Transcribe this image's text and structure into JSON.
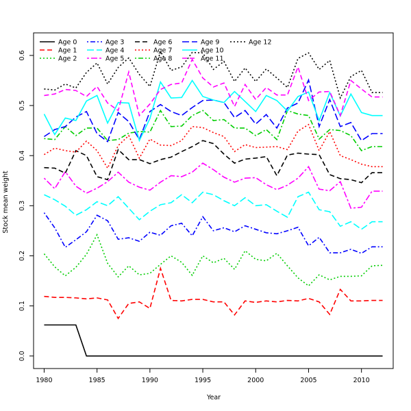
{
  "chart_data": {
    "type": "line",
    "title": "",
    "xlabel": "Year",
    "ylabel": "Stock mean weight",
    "xlim": [
      1979,
      2013
    ],
    "ylim": [
      -0.025,
      0.645
    ],
    "x_ticks": [
      1980,
      1985,
      1990,
      1995,
      2000,
      2005,
      2010
    ],
    "y_ticks": [
      0.0,
      0.1,
      0.2,
      0.3,
      0.4,
      0.5,
      0.6
    ],
    "y_tick_labels": [
      "0.0",
      "0.1",
      "0.2",
      "0.3",
      "0.4",
      "0.5",
      "0.6"
    ],
    "legend_position": "top-left",
    "x": [
      1980,
      1981,
      1982,
      1983,
      1984,
      1985,
      1986,
      1987,
      1988,
      1989,
      1990,
      1991,
      1992,
      1993,
      1994,
      1995,
      1996,
      1997,
      1998,
      1999,
      2000,
      2001,
      2002,
      2003,
      2004,
      2005,
      2006,
      2007,
      2008,
      2009,
      2010,
      2011,
      2012
    ],
    "series": [
      {
        "name": "Age 0",
        "color": "#000000",
        "dash": "solid",
        "values": [
          0.062,
          0.062,
          0.062,
          0.062,
          0.0,
          0.0,
          0.0,
          0.0,
          0.0,
          0.0,
          0.0,
          0.0,
          0.0,
          0.0,
          0.0,
          0.0,
          0.0,
          0.0,
          0.0,
          0.0,
          0.0,
          0.0,
          0.0,
          0.0,
          0.0,
          0.0,
          0.0,
          0.0,
          0.0,
          0.0,
          0.0,
          0.0,
          0.0
        ]
      },
      {
        "name": "Age 1",
        "color": "#ff0000",
        "dash": "dashed",
        "values": [
          0.119,
          0.117,
          0.117,
          0.116,
          0.114,
          0.116,
          0.112,
          0.075,
          0.105,
          0.108,
          0.095,
          0.175,
          0.111,
          0.11,
          0.113,
          0.113,
          0.108,
          0.108,
          0.082,
          0.11,
          0.107,
          0.11,
          0.108,
          0.111,
          0.11,
          0.115,
          0.108,
          0.083,
          0.133,
          0.11,
          0.11,
          0.111,
          0.111
        ]
      },
      {
        "name": "Age 2",
        "color": "#00cd00",
        "dash": "dotted",
        "values": [
          0.204,
          0.178,
          0.16,
          0.177,
          0.203,
          0.242,
          0.185,
          0.158,
          0.18,
          0.162,
          0.165,
          0.183,
          0.2,
          0.187,
          0.161,
          0.2,
          0.186,
          0.195,
          0.173,
          0.21,
          0.193,
          0.19,
          0.205,
          0.18,
          0.156,
          0.14,
          0.162,
          0.152,
          0.159,
          0.159,
          0.16,
          0.18,
          0.181
        ]
      },
      {
        "name": "Age 3",
        "color": "#0000ff",
        "dash": "dashdot",
        "values": [
          0.286,
          0.256,
          0.217,
          0.232,
          0.248,
          0.281,
          0.27,
          0.233,
          0.236,
          0.229,
          0.247,
          0.241,
          0.26,
          0.265,
          0.24,
          0.278,
          0.25,
          0.256,
          0.248,
          0.26,
          0.253,
          0.246,
          0.244,
          0.25,
          0.257,
          0.22,
          0.237,
          0.206,
          0.206,
          0.213,
          0.205,
          0.218,
          0.218
        ]
      },
      {
        "name": "Age 4",
        "color": "#00ffff",
        "dash": "longdash",
        "values": [
          0.322,
          0.312,
          0.299,
          0.281,
          0.292,
          0.308,
          0.3,
          0.318,
          0.295,
          0.272,
          0.289,
          0.302,
          0.306,
          0.322,
          0.306,
          0.327,
          0.322,
          0.31,
          0.3,
          0.316,
          0.3,
          0.302,
          0.289,
          0.277,
          0.318,
          0.327,
          0.292,
          0.288,
          0.259,
          0.268,
          0.253,
          0.268,
          0.268
        ]
      },
      {
        "name": "Age 5",
        "color": "#ff00ff",
        "dash": "twodash",
        "values": [
          0.355,
          0.334,
          0.368,
          0.339,
          0.325,
          0.335,
          0.348,
          0.367,
          0.347,
          0.337,
          0.331,
          0.347,
          0.36,
          0.358,
          0.367,
          0.385,
          0.372,
          0.357,
          0.347,
          0.355,
          0.356,
          0.342,
          0.332,
          0.341,
          0.355,
          0.378,
          0.333,
          0.33,
          0.348,
          0.295,
          0.297,
          0.329,
          0.329
        ]
      },
      {
        "name": "Age 6",
        "color": "#000000",
        "dash": "dashed",
        "values": [
          0.376,
          0.375,
          0.365,
          0.41,
          0.4,
          0.358,
          0.352,
          0.412,
          0.392,
          0.392,
          0.384,
          0.392,
          0.397,
          0.408,
          0.418,
          0.43,
          0.424,
          0.403,
          0.385,
          0.393,
          0.395,
          0.398,
          0.36,
          0.401,
          0.405,
          0.403,
          0.402,
          0.362,
          0.354,
          0.352,
          0.346,
          0.366,
          0.366
        ]
      },
      {
        "name": "Age 7",
        "color": "#ff0000",
        "dash": "dotted",
        "values": [
          0.402,
          0.415,
          0.41,
          0.407,
          0.429,
          0.41,
          0.375,
          0.42,
          0.44,
          0.395,
          0.433,
          0.421,
          0.42,
          0.43,
          0.458,
          0.456,
          0.446,
          0.438,
          0.408,
          0.422,
          0.416,
          0.417,
          0.418,
          0.412,
          0.449,
          0.462,
          0.41,
          0.448,
          0.4,
          0.392,
          0.383,
          0.378,
          0.378
        ]
      },
      {
        "name": "Age 8",
        "color": "#00cd00",
        "dash": "dashdot",
        "values": [
          0.434,
          0.432,
          0.458,
          0.44,
          0.455,
          0.455,
          0.43,
          0.432,
          0.445,
          0.448,
          0.447,
          0.49,
          0.458,
          0.459,
          0.48,
          0.49,
          0.47,
          0.472,
          0.455,
          0.455,
          0.44,
          0.452,
          0.432,
          0.49,
          0.483,
          0.48,
          0.433,
          0.452,
          0.45,
          0.44,
          0.41,
          0.418,
          0.418
        ]
      },
      {
        "name": "Age 9",
        "color": "#0000ff",
        "dash": "longdash",
        "values": [
          0.438,
          0.452,
          0.458,
          0.477,
          0.488,
          0.444,
          0.428,
          0.486,
          0.468,
          0.432,
          0.488,
          0.502,
          0.488,
          0.48,
          0.496,
          0.51,
          0.511,
          0.506,
          0.476,
          0.49,
          0.463,
          0.482,
          0.455,
          0.495,
          0.505,
          0.551,
          0.458,
          0.512,
          0.458,
          0.466,
          0.43,
          0.444,
          0.444
        ]
      },
      {
        "name": "Age 10",
        "color": "#00ffff",
        "dash": "solid",
        "values": [
          0.483,
          0.442,
          0.475,
          0.47,
          0.509,
          0.52,
          0.465,
          0.506,
          0.505,
          0.43,
          0.474,
          0.547,
          0.515,
          0.516,
          0.55,
          0.518,
          0.511,
          0.506,
          0.528,
          0.508,
          0.488,
          0.52,
          0.51,
          0.489,
          0.518,
          0.527,
          0.47,
          0.526,
          0.479,
          0.523,
          0.486,
          0.48,
          0.48
        ]
      },
      {
        "name": "Age 11",
        "color": "#ff00ff",
        "dash": "dashed",
        "values": [
          0.52,
          0.523,
          0.532,
          0.53,
          0.518,
          0.538,
          0.505,
          0.49,
          0.567,
          0.48,
          0.503,
          0.532,
          0.542,
          0.545,
          0.592,
          0.555,
          0.537,
          0.545,
          0.498,
          0.542,
          0.512,
          0.536,
          0.521,
          0.521,
          0.577,
          0.51,
          0.527,
          0.528,
          0.48,
          0.55,
          0.533,
          0.517,
          0.517
        ]
      },
      {
        "name": "Age 12",
        "color": "#000000",
        "dash": "dotted",
        "values": [
          0.533,
          0.531,
          0.543,
          0.535,
          0.566,
          0.585,
          0.543,
          0.576,
          0.595,
          0.562,
          0.538,
          0.608,
          0.57,
          0.577,
          0.606,
          0.605,
          0.572,
          0.588,
          0.548,
          0.575,
          0.548,
          0.573,
          0.555,
          0.536,
          0.594,
          0.605,
          0.572,
          0.59,
          0.515,
          0.558,
          0.57,
          0.526,
          0.526
        ]
      }
    ]
  }
}
